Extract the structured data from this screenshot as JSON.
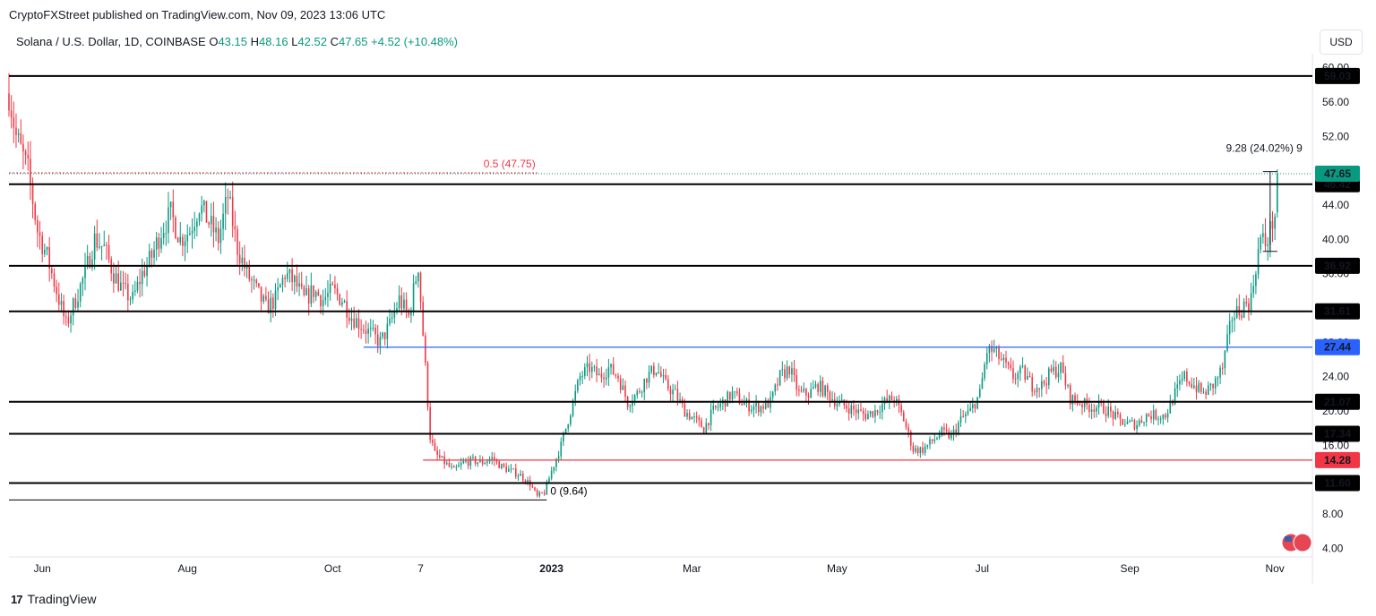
{
  "header": {
    "publisher_line": "CryptoFXStreet published on TradingView.com, Nov 09, 2023 13:06 UTC",
    "symbol": "Solana / U.S. Dollar, 1D, COINBASE",
    "open_label": "O",
    "open_value": "43.15",
    "high_label": "H",
    "high_value": "48.16",
    "low_label": "L",
    "low_value": "42.52",
    "close_label": "C",
    "close_value": "47.65",
    "change": "+4.52 (+10.48%)",
    "currency_button": "USD"
  },
  "footer": {
    "brand": "TradingView"
  },
  "colors": {
    "up": "#089981",
    "down": "#f23645",
    "support_line": "#000000",
    "blue_line": "#2962ff",
    "red_line": "#f23645",
    "fib_text": "#f23645"
  },
  "chart_data": {
    "type": "candlestick",
    "ylim": [
      3,
      61
    ],
    "y_ticks": [
      "60.00",
      "56.00",
      "52.00",
      "48.00",
      "44.00",
      "40.00",
      "36.00",
      "32.00",
      "28.00",
      "24.00",
      "20.00",
      "16.00",
      "12.00",
      "8.00",
      "4.00"
    ],
    "y_tick_values": [
      60,
      56,
      52,
      48,
      44,
      40,
      36,
      32,
      28,
      24,
      20,
      16,
      12,
      8,
      4
    ],
    "x_labels": [
      {
        "label": "Jun",
        "day": 14,
        "bold": false
      },
      {
        "label": "Aug",
        "day": 75,
        "bold": false
      },
      {
        "label": "Oct",
        "day": 136,
        "bold": false
      },
      {
        "label": "7",
        "day": 173,
        "bold": false
      },
      {
        "label": "2023",
        "day": 228,
        "bold": true
      },
      {
        "label": "Mar",
        "day": 287,
        "bold": false
      },
      {
        "label": "May",
        "day": 348,
        "bold": false
      },
      {
        "label": "Jul",
        "day": 409,
        "bold": false
      },
      {
        "label": "Sep",
        "day": 471,
        "bold": false
      },
      {
        "label": "Nov",
        "day": 532,
        "bold": false
      }
    ],
    "x_range_days": [
      0,
      547
    ],
    "horizontal_levels": [
      {
        "value": 59.03,
        "label": "59.03",
        "style": "black",
        "start_day": 0
      },
      {
        "value": 46.42,
        "label": "46.42",
        "style": "black",
        "start_day": 0
      },
      {
        "value": 36.92,
        "label": "36.92",
        "style": "black",
        "start_day": 0
      },
      {
        "value": 31.61,
        "label": "31.61",
        "style": "black",
        "start_day": 0
      },
      {
        "value": 27.44,
        "label": "27.44",
        "style": "blue",
        "start_day": 149
      },
      {
        "value": 21.07,
        "label": "21.07",
        "style": "black",
        "start_day": 0
      },
      {
        "value": 17.34,
        "label": "17.34",
        "style": "black",
        "start_day": 0
      },
      {
        "value": 14.28,
        "label": "14.28",
        "style": "red",
        "start_day": 174
      },
      {
        "value": 11.6,
        "label": "11.60",
        "style": "black",
        "start_day": 0
      }
    ],
    "last_price": {
      "value": 47.65,
      "label": "47.65"
    },
    "fib_annotations": [
      {
        "text": "0.5 (47.75)",
        "value": 47.75,
        "start_day": 0,
        "end_day": 222
      },
      {
        "text": "0 (9.64)",
        "value": 9.64,
        "start_day": 0,
        "end_day": 226
      }
    ],
    "measure_annotation": {
      "text": "9.28 (24.02%) 9",
      "from": 38.6,
      "to": 47.9,
      "day": 530
    },
    "price_path": [
      [
        0,
        57
      ],
      [
        3,
        52
      ],
      [
        8,
        48
      ],
      [
        12,
        41
      ],
      [
        16,
        38
      ],
      [
        20,
        34
      ],
      [
        24,
        30
      ],
      [
        28,
        33
      ],
      [
        32,
        36
      ],
      [
        36,
        40
      ],
      [
        40,
        39
      ],
      [
        44,
        36
      ],
      [
        48,
        34
      ],
      [
        52,
        33
      ],
      [
        56,
        36
      ],
      [
        60,
        38
      ],
      [
        64,
        41
      ],
      [
        68,
        43
      ],
      [
        72,
        40
      ],
      [
        76,
        41
      ],
      [
        80,
        44
      ],
      [
        84,
        42
      ],
      [
        88,
        40
      ],
      [
        92,
        45
      ],
      [
        96,
        39
      ],
      [
        100,
        36
      ],
      [
        104,
        34
      ],
      [
        108,
        32
      ],
      [
        112,
        33
      ],
      [
        116,
        36
      ],
      [
        120,
        35
      ],
      [
        124,
        33
      ],
      [
        128,
        34
      ],
      [
        132,
        33
      ],
      [
        136,
        34
      ],
      [
        140,
        33
      ],
      [
        144,
        31
      ],
      [
        148,
        30
      ],
      [
        152,
        29
      ],
      [
        156,
        28
      ],
      [
        160,
        30
      ],
      [
        164,
        33
      ],
      [
        168,
        31
      ],
      [
        172,
        37
      ],
      [
        175,
        25
      ],
      [
        177,
        17
      ],
      [
        179,
        15
      ],
      [
        183,
        14
      ],
      [
        187,
        13
      ],
      [
        191,
        14
      ],
      [
        195,
        14.2
      ],
      [
        199,
        14
      ],
      [
        203,
        14.5
      ],
      [
        207,
        13.5
      ],
      [
        211,
        13
      ],
      [
        215,
        12.5
      ],
      [
        219,
        11.5
      ],
      [
        222,
        10
      ],
      [
        225,
        10.5
      ],
      [
        228,
        13
      ],
      [
        232,
        16
      ],
      [
        236,
        20
      ],
      [
        240,
        24
      ],
      [
        244,
        25
      ],
      [
        248,
        24
      ],
      [
        252,
        25
      ],
      [
        256,
        24
      ],
      [
        260,
        21
      ],
      [
        264,
        22
      ],
      [
        268,
        24
      ],
      [
        272,
        25
      ],
      [
        276,
        23
      ],
      [
        280,
        22
      ],
      [
        284,
        20
      ],
      [
        288,
        19
      ],
      [
        292,
        18
      ],
      [
        296,
        20
      ],
      [
        300,
        21
      ],
      [
        304,
        22
      ],
      [
        308,
        21
      ],
      [
        312,
        20.5
      ],
      [
        316,
        20.5
      ],
      [
        320,
        21
      ],
      [
        324,
        24
      ],
      [
        328,
        25
      ],
      [
        332,
        22
      ],
      [
        336,
        22
      ],
      [
        340,
        23
      ],
      [
        344,
        22
      ],
      [
        348,
        21
      ],
      [
        352,
        20.5
      ],
      [
        356,
        20
      ],
      [
        360,
        19.5
      ],
      [
        364,
        20
      ],
      [
        368,
        21
      ],
      [
        372,
        21.5
      ],
      [
        376,
        19
      ],
      [
        380,
        15.5
      ],
      [
        384,
        15.5
      ],
      [
        388,
        16.5
      ],
      [
        392,
        17.5
      ],
      [
        396,
        17
      ],
      [
        400,
        19
      ],
      [
        404,
        20
      ],
      [
        408,
        22
      ],
      [
        411,
        27
      ],
      [
        414,
        27
      ],
      [
        418,
        25.5
      ],
      [
        422,
        24
      ],
      [
        426,
        24.5
      ],
      [
        430,
        23
      ],
      [
        434,
        23
      ],
      [
        438,
        24.5
      ],
      [
        442,
        25
      ],
      [
        446,
        21.5
      ],
      [
        450,
        21
      ],
      [
        454,
        20.5
      ],
      [
        458,
        20.5
      ],
      [
        462,
        20
      ],
      [
        466,
        19
      ],
      [
        470,
        18.5
      ],
      [
        474,
        18.5
      ],
      [
        478,
        19.5
      ],
      [
        482,
        19.5
      ],
      [
        486,
        19.5
      ],
      [
        490,
        22
      ],
      [
        494,
        24
      ],
      [
        498,
        23
      ],
      [
        502,
        22
      ],
      [
        506,
        23
      ],
      [
        510,
        25
      ],
      [
        514,
        31
      ],
      [
        518,
        32
      ],
      [
        522,
        33
      ],
      [
        524,
        37
      ],
      [
        526,
        40
      ],
      [
        528,
        39.5
      ],
      [
        530,
        41
      ],
      [
        532,
        43
      ],
      [
        533,
        47.65
      ]
    ]
  }
}
